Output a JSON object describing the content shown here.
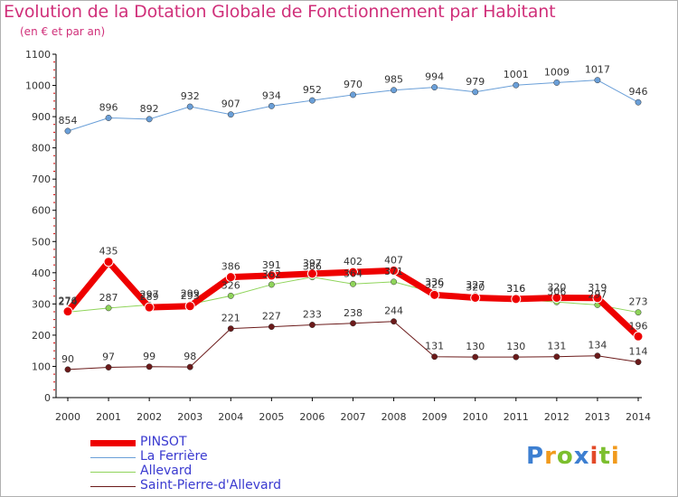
{
  "title": "Evolution de la Dotation Globale de Fonctionnement par Habitant",
  "subtitle": "(en € et par an)",
  "logo": {
    "text": "Proxiti",
    "colors": [
      "#3d7fd1",
      "#f19a1c",
      "#7cbf2e",
      "#3d7fd1",
      "#e34a28",
      "#7cbf2e",
      "#f19a1c"
    ]
  },
  "chart_data": {
    "type": "line",
    "title": "Evolution de la Dotation Globale de Fonctionnement par Habitant",
    "subtitle": "(en € et par an)",
    "xlabel": "",
    "ylabel": "",
    "ylim": [
      0,
      1100
    ],
    "yticks": [
      0,
      100,
      200,
      300,
      400,
      500,
      600,
      700,
      800,
      900,
      1000,
      1100
    ],
    "grid": false,
    "legend_position": "bottom-left",
    "x": [
      "2000",
      "2001",
      "2002",
      "2003",
      "2004",
      "2005",
      "2006",
      "2007",
      "2008",
      "2009",
      "2010",
      "2011",
      "2012",
      "2013",
      "2014"
    ],
    "series": [
      {
        "name": "Saint-Pierre-d'Allevard",
        "color": "#6b1a1a",
        "width": 1,
        "values": [
          90,
          97,
          99,
          98,
          221,
          227,
          233,
          238,
          244,
          131,
          130,
          130,
          131,
          134,
          114
        ]
      },
      {
        "name": "Allevard",
        "color": "#8fd45a",
        "width": 1,
        "values": [
          274,
          287,
          297,
          299,
          326,
          362,
          386,
          364,
          371,
          336,
          327,
          316,
          306,
          297,
          273
        ]
      },
      {
        "name": "La Ferrière",
        "color": "#6a9fd8",
        "width": 1,
        "values": [
          854,
          896,
          892,
          932,
          907,
          934,
          952,
          970,
          985,
          994,
          979,
          1001,
          1009,
          1017,
          946
        ]
      },
      {
        "name": "PINSOT",
        "color": "#ee0000",
        "width": 7,
        "values": [
          276,
          435,
          289,
          293,
          386,
          391,
          397,
          402,
          407,
          329,
          320,
          316,
          320,
          319,
          196
        ]
      }
    ]
  },
  "legend": [
    {
      "name": "PINSOT",
      "color": "#ee0000",
      "width": 7
    },
    {
      "name": "La Ferrière",
      "color": "#6a9fd8",
      "width": 1
    },
    {
      "name": "Allevard",
      "color": "#8fd45a",
      "width": 1
    },
    {
      "name": "Saint-Pierre-d'Allevard",
      "color": "#6b1a1a",
      "width": 1
    }
  ]
}
